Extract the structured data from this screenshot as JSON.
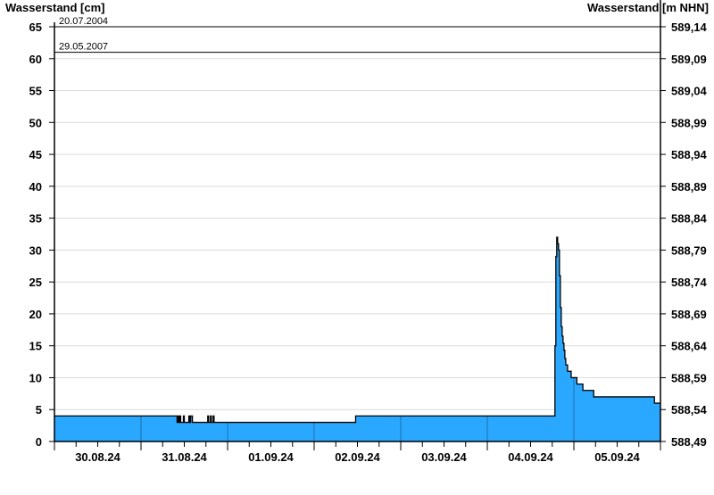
{
  "chart_data": {
    "type": "area",
    "title": "",
    "ylabel_left": "Wasserstand [cm]",
    "ylabel_right": "Wasserstand [m NHN]",
    "ylim": [
      0,
      65
    ],
    "y_ticks": [
      0,
      5,
      10,
      15,
      20,
      25,
      30,
      35,
      40,
      45,
      50,
      55,
      60,
      65
    ],
    "y_right_ticks": [
      "588,49",
      "588,54",
      "588,59",
      "588,64",
      "588,69",
      "588,74",
      "588,79",
      "588,84",
      "588,89",
      "588,94",
      "588,99",
      "589,04",
      "589,09",
      "589,14"
    ],
    "xlim": [
      "2024-08-30T00:00",
      "2024-09-06T00:00"
    ],
    "x_tick_labels": [
      "30.08.24",
      "31.08.24",
      "01.09.24",
      "02.09.24",
      "03.09.24",
      "04.09.24",
      "05.09.24"
    ],
    "grid": true,
    "step": true,
    "fill_color": "#2aa8ff",
    "day_line_color": "#1a6fa8",
    "reference_lines": [
      {
        "label": "20.07.2004",
        "value": 65
      },
      {
        "label": "29.05.2007",
        "value": 61
      }
    ],
    "series": [
      {
        "points": [
          [
            "2024-08-30T00:00",
            4
          ],
          [
            "2024-08-31T10:00",
            3
          ],
          [
            "2024-08-31T10:15",
            4
          ],
          [
            "2024-08-31T10:30",
            3
          ],
          [
            "2024-08-31T10:45",
            4
          ],
          [
            "2024-08-31T11:00",
            3
          ],
          [
            "2024-08-31T11:45",
            4
          ],
          [
            "2024-08-31T12:00",
            3
          ],
          [
            "2024-08-31T13:15",
            4
          ],
          [
            "2024-08-31T13:30",
            3
          ],
          [
            "2024-08-31T13:45",
            4
          ],
          [
            "2024-08-31T14:15",
            3
          ],
          [
            "2024-08-31T18:30",
            4
          ],
          [
            "2024-08-31T18:45",
            3
          ],
          [
            "2024-08-31T19:15",
            4
          ],
          [
            "2024-08-31T19:30",
            3
          ],
          [
            "2024-08-31T20:00",
            4
          ],
          [
            "2024-08-31T20:15",
            3
          ],
          [
            "2024-09-02T11:30",
            4
          ],
          [
            "2024-09-04T18:45",
            15
          ],
          [
            "2024-09-04T19:00",
            29
          ],
          [
            "2024-09-04T19:15",
            32
          ],
          [
            "2024-09-04T19:30",
            31
          ],
          [
            "2024-09-04T19:45",
            30
          ],
          [
            "2024-09-04T20:00",
            26
          ],
          [
            "2024-09-04T20:15",
            21
          ],
          [
            "2024-09-04T20:30",
            18
          ],
          [
            "2024-09-04T20:45",
            16.5
          ],
          [
            "2024-09-04T21:00",
            15.4
          ],
          [
            "2024-09-04T21:15",
            14.3
          ],
          [
            "2024-09-04T21:30",
            13
          ],
          [
            "2024-09-04T21:45",
            12
          ],
          [
            "2024-09-04T22:15",
            11
          ],
          [
            "2024-09-04T23:15",
            10
          ],
          [
            "2024-09-05T00:50",
            9
          ],
          [
            "2024-09-05T02:30",
            8
          ],
          [
            "2024-09-05T05:30",
            7
          ],
          [
            "2024-09-05T22:20",
            6
          ]
        ]
      }
    ]
  }
}
